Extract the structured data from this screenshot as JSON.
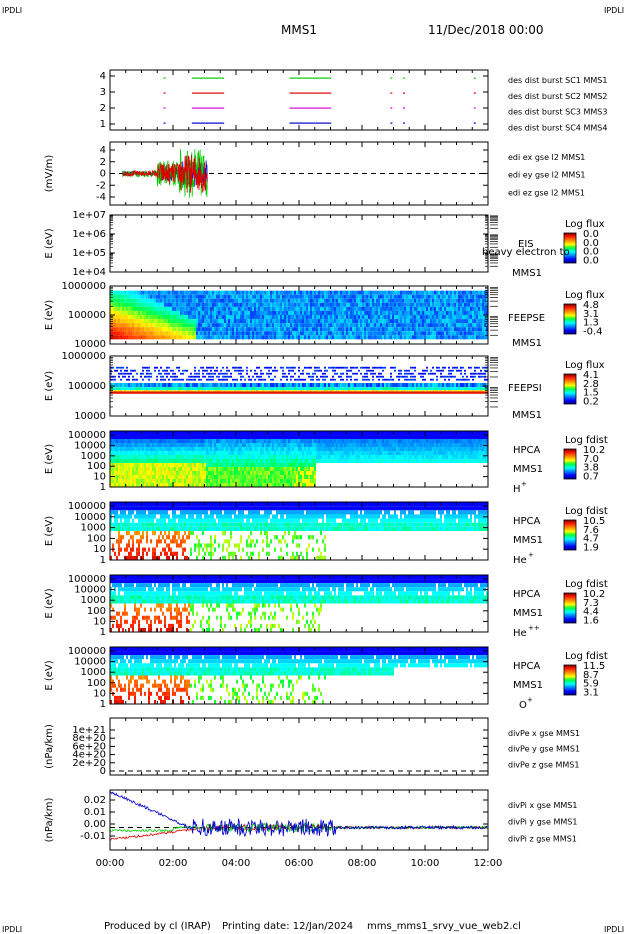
{
  "header": {
    "corner_tl": "IPDLI",
    "corner_tr": "IPDLI",
    "corner_bl": "IPDLI",
    "corner_br": "IPDLI",
    "title": "MMS1",
    "datetime": "11/Dec/2018 00:00"
  },
  "footer": {
    "produced_by": "Produced by cl (IRAP)",
    "printing_date": "Printing date: 12/Jan/2024",
    "file": "mms_mms1_srvy_vue_web2.cl"
  },
  "colors": {
    "blue": "#0000cc",
    "red": "#dd0000",
    "green": "#00cc00",
    "magenta": "#dd00dd"
  },
  "chart_data": {
    "type": "multi-panel time series / spectrogram",
    "time_axis": {
      "start": "00:00",
      "end": "12:00",
      "ticks": [
        "00:00",
        "02:00",
        "04:00",
        "06:00",
        "08:00",
        "10:00",
        "12:00"
      ]
    },
    "panels": [
      {
        "id": "burst",
        "type": "event",
        "ylabel": "",
        "yticks": [
          "4",
          "3",
          "2",
          "1"
        ],
        "legend": [
          {
            "label": "des dist burst SC1 MMS1",
            "color": "blue"
          },
          {
            "label": "des dist burst SC2 MMS2",
            "color": "magenta"
          },
          {
            "label": "des dist burst SC3 MMS3",
            "color": "red"
          },
          {
            "label": "des dist burst SC4 MMS4",
            "color": "green"
          }
        ],
        "burst_intervals_h": [
          [
            1.7,
            1.75
          ],
          [
            2.6,
            3.6
          ],
          [
            5.7,
            7.0
          ],
          [
            8.9,
            8.95
          ],
          [
            9.3,
            9.35
          ],
          [
            11.55,
            11.6
          ]
        ]
      },
      {
        "id": "edi",
        "type": "line",
        "ylabel": "(mV/m)",
        "yticks": [
          "4",
          "2",
          "0",
          "-2",
          "-4"
        ],
        "ylim": [
          -5,
          5
        ],
        "data_extent_h": [
          0.4,
          3.1
        ],
        "legend": [
          {
            "label": "edi ex gse l2 MMS1",
            "color": "red"
          },
          {
            "label": "edi ey gse l2 MMS1",
            "color": "green"
          },
          {
            "label": "edi ez gse l2 MMS1",
            "color": "blue"
          }
        ]
      },
      {
        "id": "eis",
        "type": "spectrogram",
        "ylabel": "E (eV)",
        "yticks": [
          "1e+07",
          "1e+06",
          "1e+05",
          "1e+04"
        ],
        "instrument": "EIS",
        "sub": "MMS1",
        "side_note": "heavy electron to",
        "cbar_title": "Log flux",
        "cbar_values": [
          "0.0",
          "0.0",
          "0.0",
          "0.0"
        ],
        "empty": true
      },
      {
        "id": "feepse",
        "type": "spectrogram",
        "ylabel": "E (eV)",
        "yticks": [
          "1000000",
          "100000",
          "10000"
        ],
        "instrument": "FEEPSE",
        "sub": "MMS1",
        "cbar_title": "Log flux",
        "cbar_values": [
          "4.8",
          "3.1",
          "1.3",
          "-0.4"
        ]
      },
      {
        "id": "feepsi",
        "type": "spectrogram",
        "ylabel": "E (eV)",
        "yticks": [
          "1000000",
          "100000",
          "10000"
        ],
        "instrument": "FEEPSI",
        "sub": "MMS1",
        "cbar_title": "Log flux",
        "cbar_values": [
          "4.1",
          "2.8",
          "1.5",
          "0.2"
        ]
      },
      {
        "id": "hpca_h",
        "type": "spectrogram",
        "ylabel": "E (eV)",
        "yticks": [
          "100000",
          "10000",
          "1000",
          "100",
          "10",
          "1"
        ],
        "instrument": "HPCA",
        "sub": "MMS1",
        "species": "H",
        "charge": "+",
        "cbar_title": "Log fdist",
        "cbar_values": [
          "10.2",
          "7.0",
          "3.8",
          "0.7"
        ]
      },
      {
        "id": "hpca_he1",
        "type": "spectrogram",
        "ylabel": "E (eV)",
        "yticks": [
          "100000",
          "10000",
          "1000",
          "100",
          "10",
          "1"
        ],
        "instrument": "HPCA",
        "sub": "MMS1",
        "species": "He",
        "charge": "+",
        "cbar_title": "Log fdist",
        "cbar_values": [
          "10.5",
          "7.6",
          "4.7",
          "1.9"
        ]
      },
      {
        "id": "hpca_he2",
        "type": "spectrogram",
        "ylabel": "E (eV)",
        "yticks": [
          "100000",
          "10000",
          "1000",
          "100",
          "10",
          "1"
        ],
        "instrument": "HPCA",
        "sub": "MMS1",
        "species": "He",
        "charge": "++",
        "cbar_title": "Log fdist",
        "cbar_values": [
          "10.2",
          "7.3",
          "4.4",
          "1.6"
        ]
      },
      {
        "id": "hpca_o",
        "type": "spectrogram",
        "ylabel": "E (eV)",
        "yticks": [
          "100000",
          "10000",
          "1000",
          "100",
          "10",
          "1"
        ],
        "instrument": "HPCA",
        "sub": "MMS1",
        "species": "O",
        "charge": "+",
        "cbar_title": "Log fdist",
        "cbar_values": [
          "11.5",
          "8.7",
          "5.9",
          "3.1"
        ]
      },
      {
        "id": "divpe",
        "type": "line",
        "ylabel": "(nPa/km)",
        "yticks": [
          "1e+21",
          "8e+20",
          "6e+20",
          "4e+20",
          "2e+20",
          "0"
        ],
        "ylim": [
          0,
          1e+21
        ],
        "empty": true,
        "legend": [
          {
            "label": "divPe x gse MMS1",
            "color": "red"
          },
          {
            "label": "divPe y gse MMS1",
            "color": "green"
          },
          {
            "label": "divPe z gse MMS1",
            "color": "blue"
          }
        ]
      },
      {
        "id": "divpi",
        "type": "line",
        "ylabel": "(nPa/km)",
        "yticks": [
          "0.02",
          "0.01",
          "0.00",
          "-0.01"
        ],
        "ylim": [
          -0.015,
          0.025
        ],
        "legend": [
          {
            "label": "divPi x gse MMS1",
            "color": "red"
          },
          {
            "label": "divPi y gse MMS1",
            "color": "green"
          },
          {
            "label": "divPi z gse MMS1",
            "color": "blue"
          }
        ]
      }
    ]
  }
}
